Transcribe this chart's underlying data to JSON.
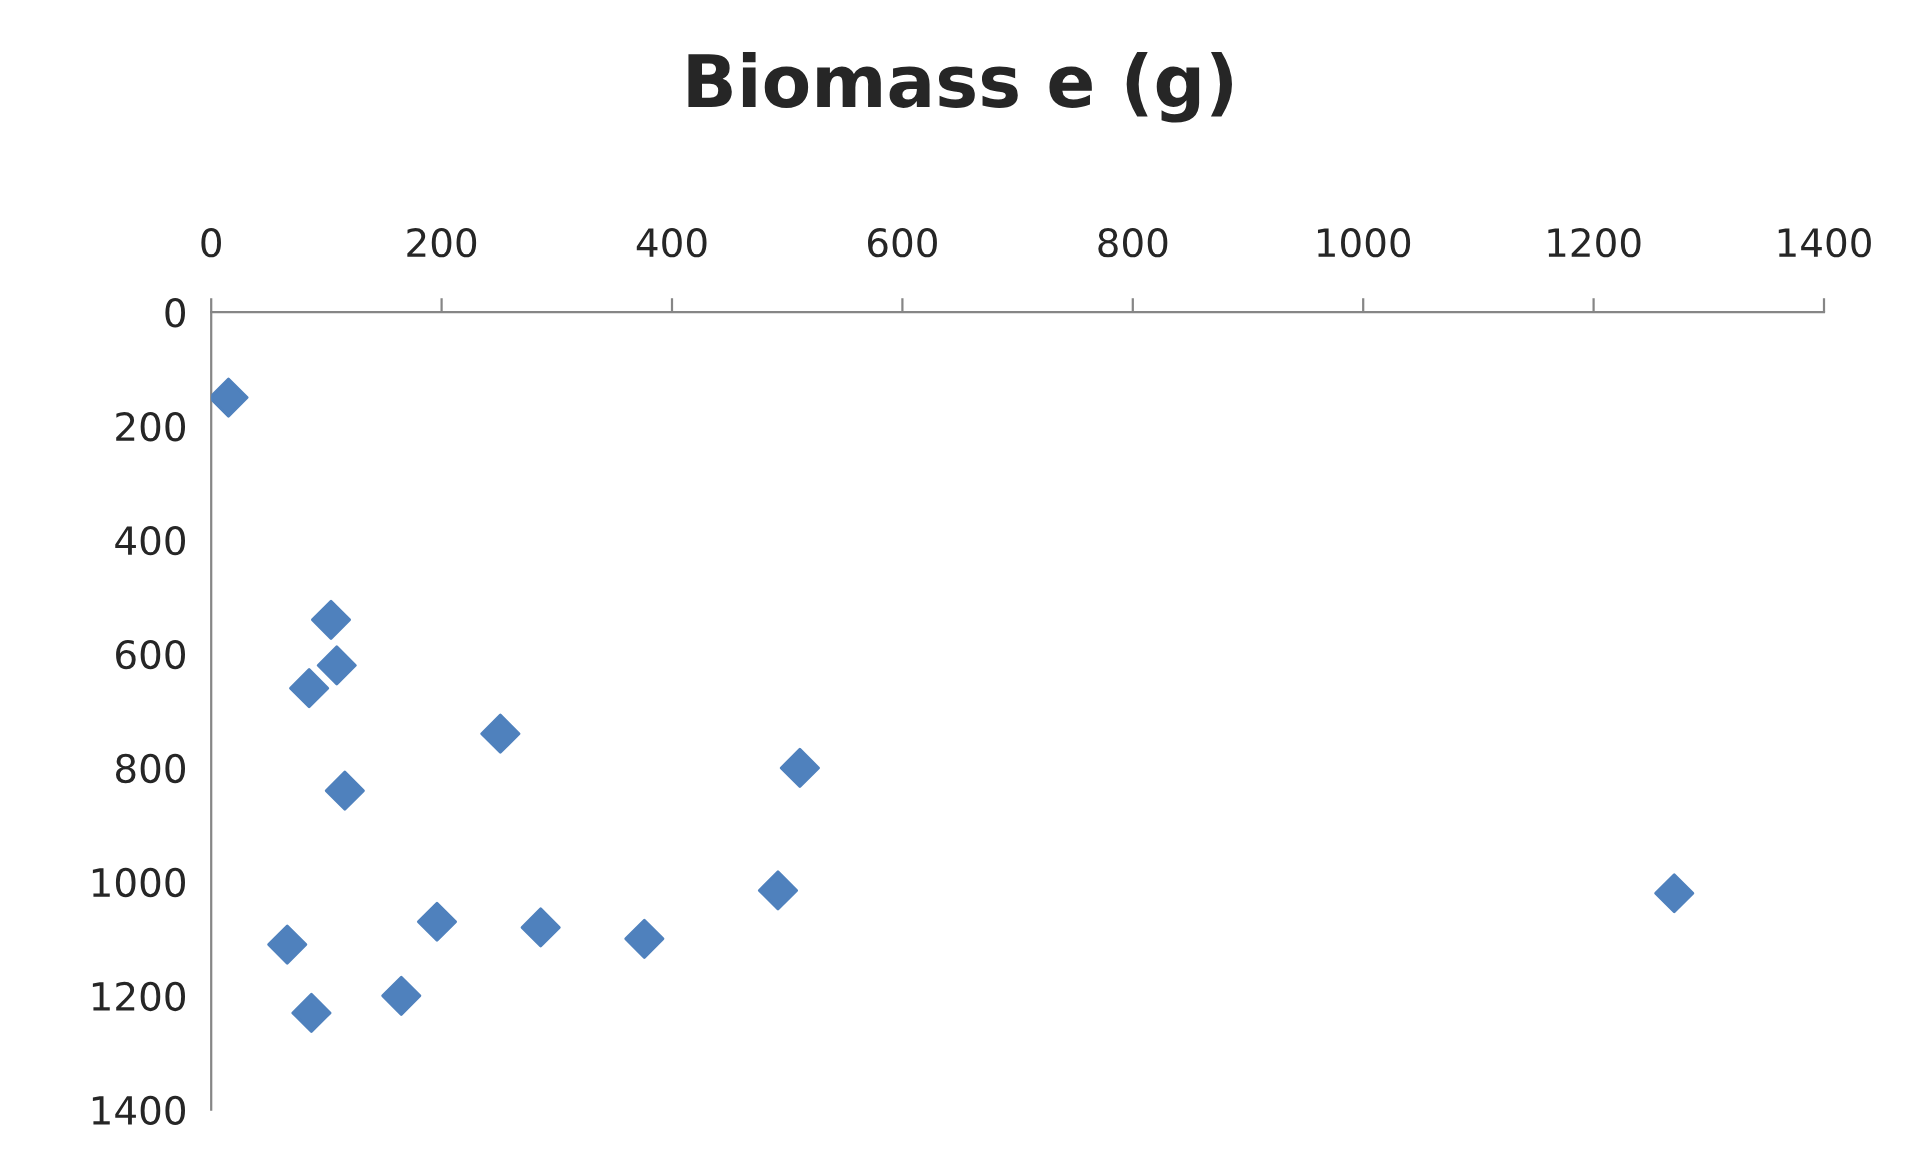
{
  "chart_data": {
    "type": "scatter",
    "title": "Biomass e (g)",
    "x": [
      15,
      104,
      109,
      85,
      116,
      251,
      511,
      66,
      87,
      165,
      196,
      286,
      376,
      492,
      1270
    ],
    "series": [
      {
        "color": "#4f81bd",
        "values": [
          150,
          540,
          620,
          660,
          840,
          740,
          800,
          1110,
          1230,
          1200,
          1070,
          1080,
          1100,
          1015,
          1020
        ]
      }
    ],
    "marker": "diamond",
    "xlim": [
      0,
      1400
    ],
    "xticks": [
      0,
      200,
      400,
      600,
      800,
      1000,
      1200,
      1400
    ],
    "ylim": [
      1400,
      0
    ],
    "yticks": [
      0,
      200,
      400,
      600,
      800,
      1000,
      1200,
      1400
    ],
    "grid": false,
    "legend": false
  }
}
